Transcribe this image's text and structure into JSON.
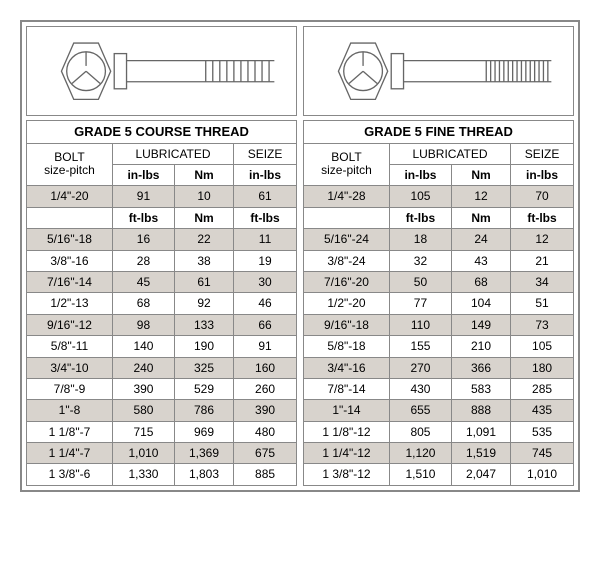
{
  "styling": {
    "border_color": "#888888",
    "grey_row": "#d8d3cd",
    "white_row": "#ffffff",
    "font_family": "Arial",
    "title_fontsize": 13,
    "cell_fontsize": 12,
    "bolt_stroke": "#666666",
    "bolt_fill": "none"
  },
  "common_headers": {
    "bolt_col_l1": "BOLT",
    "bolt_col_l2": "size-pitch",
    "lubricated": "LUBRICATED",
    "seize": "SEIZE",
    "in_lbs": "in-lbs",
    "nm": "Nm",
    "ft_lbs": "ft-lbs"
  },
  "left": {
    "title": "GRADE 5 COURSE THREAD",
    "first_row": {
      "size": "1/4\"-20",
      "lub_in": "91",
      "lub_nm": "10",
      "seize": "61"
    },
    "rows": [
      {
        "size": "5/16\"-18",
        "lub": "16",
        "nm": "22",
        "seize": "11",
        "grey": true
      },
      {
        "size": "3/8\"-16",
        "lub": "28",
        "nm": "38",
        "seize": "19",
        "grey": false
      },
      {
        "size": "7/16\"-14",
        "lub": "45",
        "nm": "61",
        "seize": "30",
        "grey": true
      },
      {
        "size": "1/2\"-13",
        "lub": "68",
        "nm": "92",
        "seize": "46",
        "grey": false
      },
      {
        "size": "9/16\"-12",
        "lub": "98",
        "nm": "133",
        "seize": "66",
        "grey": true
      },
      {
        "size": "5/8\"-11",
        "lub": "140",
        "nm": "190",
        "seize": "91",
        "grey": false
      },
      {
        "size": "3/4\"-10",
        "lub": "240",
        "nm": "325",
        "seize": "160",
        "grey": true
      },
      {
        "size": "7/8\"-9",
        "lub": "390",
        "nm": "529",
        "seize": "260",
        "grey": false
      },
      {
        "size": "1\"-8",
        "lub": "580",
        "nm": "786",
        "seize": "390",
        "grey": true
      },
      {
        "size": "1 1/8\"-7",
        "lub": "715",
        "nm": "969",
        "seize": "480",
        "grey": false
      },
      {
        "size": "1 1/4\"-7",
        "lub": "1,010",
        "nm": "1,369",
        "seize": "675",
        "grey": true
      },
      {
        "size": "1 3/8\"-6",
        "lub": "1,330",
        "nm": "1,803",
        "seize": "885",
        "grey": false
      }
    ]
  },
  "right": {
    "title": "GRADE 5 FINE THREAD",
    "first_row": {
      "size": "1/4\"-28",
      "lub_in": "105",
      "lub_nm": "12",
      "seize": "70"
    },
    "rows": [
      {
        "size": "5/16\"-24",
        "lub": "18",
        "nm": "24",
        "seize": "12",
        "grey": true
      },
      {
        "size": "3/8\"-24",
        "lub": "32",
        "nm": "43",
        "seize": "21",
        "grey": false
      },
      {
        "size": "7/16\"-20",
        "lub": "50",
        "nm": "68",
        "seize": "34",
        "grey": true
      },
      {
        "size": "1/2\"-20",
        "lub": "77",
        "nm": "104",
        "seize": "51",
        "grey": false
      },
      {
        "size": "9/16\"-18",
        "lub": "110",
        "nm": "149",
        "seize": "73",
        "grey": true
      },
      {
        "size": "5/8\"-18",
        "lub": "155",
        "nm": "210",
        "seize": "105",
        "grey": false
      },
      {
        "size": "3/4\"-16",
        "lub": "270",
        "nm": "366",
        "seize": "180",
        "grey": true
      },
      {
        "size": "7/8\"-14",
        "lub": "430",
        "nm": "583",
        "seize": "285",
        "grey": false
      },
      {
        "size": "1\"-14",
        "lub": "655",
        "nm": "888",
        "seize": "435",
        "grey": true
      },
      {
        "size": "1 1/8\"-12",
        "lub": "805",
        "nm": "1,091",
        "seize": "535",
        "grey": false
      },
      {
        "size": "1 1/4\"-12",
        "lub": "1,120",
        "nm": "1,519",
        "seize": "745",
        "grey": true
      },
      {
        "size": "1 3/8\"-12",
        "lub": "1,510",
        "nm": "2,047",
        "seize": "1,010",
        "grey": false
      }
    ]
  }
}
